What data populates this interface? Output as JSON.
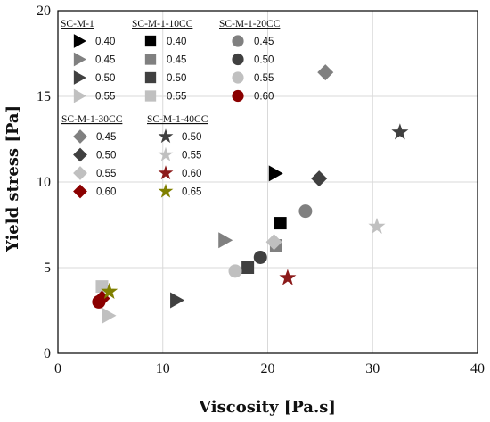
{
  "chart_data": {
    "type": "scatter",
    "title": "",
    "xlabel": "Viscosity [Pa.s]",
    "ylabel": "Yield stress [Pa]",
    "xlim": [
      0,
      40
    ],
    "ylim": [
      0,
      20
    ],
    "xticks": [
      "0",
      "10",
      "20",
      "30",
      "40"
    ],
    "yticks": [
      "0",
      "5",
      "10",
      "15",
      "20"
    ],
    "grid": true,
    "legend_placement": "top-left",
    "series": [
      {
        "group": "SC-M-1",
        "name": "0.40",
        "marker": "triangle-right",
        "color": "#000000",
        "points": [
          [
            20.7,
            10.5
          ]
        ]
      },
      {
        "group": "SC-M-1",
        "name": "0.45",
        "marker": "triangle-right",
        "color": "#808080",
        "points": [
          [
            15.9,
            6.6
          ]
        ]
      },
      {
        "group": "SC-M-1",
        "name": "0.50",
        "marker": "triangle-right",
        "color": "#404040",
        "points": [
          [
            11.3,
            3.1
          ]
        ]
      },
      {
        "group": "SC-M-1",
        "name": "0.55",
        "marker": "triangle-right",
        "color": "#c0c0c0",
        "points": [
          [
            4.8,
            2.2
          ]
        ]
      },
      {
        "group": "SC-M-1-10CC",
        "name": "0.40",
        "marker": "square",
        "color": "#000000",
        "points": [
          [
            21.2,
            7.6
          ]
        ]
      },
      {
        "group": "SC-M-1-10CC",
        "name": "0.45",
        "marker": "square",
        "color": "#808080",
        "points": [
          [
            20.8,
            6.3
          ]
        ]
      },
      {
        "group": "SC-M-1-10CC",
        "name": "0.50",
        "marker": "square",
        "color": "#404040",
        "points": [
          [
            18.1,
            5.0
          ]
        ]
      },
      {
        "group": "SC-M-1-10CC",
        "name": "0.55",
        "marker": "square",
        "color": "#c0c0c0",
        "points": [
          [
            4.2,
            3.9
          ]
        ]
      },
      {
        "group": "SC-M-1-20CC",
        "name": "0.45",
        "marker": "circle",
        "color": "#808080",
        "points": [
          [
            23.6,
            8.3
          ]
        ]
      },
      {
        "group": "SC-M-1-20CC",
        "name": "0.50",
        "marker": "circle",
        "color": "#404040",
        "points": [
          [
            19.3,
            5.6
          ]
        ]
      },
      {
        "group": "SC-M-1-20CC",
        "name": "0.55",
        "marker": "circle",
        "color": "#c0c0c0",
        "points": [
          [
            16.9,
            4.8
          ]
        ]
      },
      {
        "group": "SC-M-1-20CC",
        "name": "0.60",
        "marker": "circle",
        "color": "#8b0000",
        "points": [
          [
            3.9,
            3.0
          ]
        ]
      },
      {
        "group": "SC-M-1-30CC",
        "name": "0.45",
        "marker": "diamond",
        "color": "#808080",
        "points": [
          [
            25.5,
            16.4
          ]
        ]
      },
      {
        "group": "SC-M-1-30CC",
        "name": "0.50",
        "marker": "diamond",
        "color": "#404040",
        "points": [
          [
            24.9,
            10.2
          ]
        ]
      },
      {
        "group": "SC-M-1-30CC",
        "name": "0.55",
        "marker": "diamond",
        "color": "#c0c0c0",
        "points": [
          [
            20.6,
            6.5
          ]
        ]
      },
      {
        "group": "SC-M-1-30CC",
        "name": "0.60",
        "marker": "diamond",
        "color": "#8b0000",
        "points": [
          [
            4.2,
            3.2
          ]
        ]
      },
      {
        "group": "SC-M-1-40CC",
        "name": "0.50",
        "marker": "star",
        "color": "#404040",
        "points": [
          [
            32.6,
            12.9
          ]
        ]
      },
      {
        "group": "SC-M-1-40CC",
        "name": "0.55",
        "marker": "star",
        "color": "#c0c0c0",
        "points": [
          [
            30.4,
            7.4
          ]
        ]
      },
      {
        "group": "SC-M-1-40CC",
        "name": "0.60",
        "marker": "star",
        "color": "#8b1a1a",
        "points": [
          [
            21.9,
            4.4
          ]
        ]
      },
      {
        "group": "SC-M-1-40CC",
        "name": "0.65",
        "marker": "star",
        "color": "#808000",
        "points": [
          [
            4.9,
            3.6
          ]
        ]
      }
    ],
    "legend_groups": [
      {
        "title": "SC-M-1",
        "items": [
          "0.40",
          "0.45",
          "0.50",
          "0.55"
        ]
      },
      {
        "title": "SC-M-1-10CC",
        "items": [
          "0.40",
          "0.45",
          "0.50",
          "0.55"
        ]
      },
      {
        "title": "SC-M-1-20CC",
        "items": [
          "0.45",
          "0.50",
          "0.55",
          "0.60"
        ]
      },
      {
        "title": "SC-M-1-30CC",
        "items": [
          "0.45",
          "0.50",
          "0.55",
          "0.60"
        ]
      },
      {
        "title": "SC-M-1-40CC",
        "items": [
          "0.50",
          "0.55",
          "0.60",
          "0.65"
        ]
      }
    ]
  }
}
